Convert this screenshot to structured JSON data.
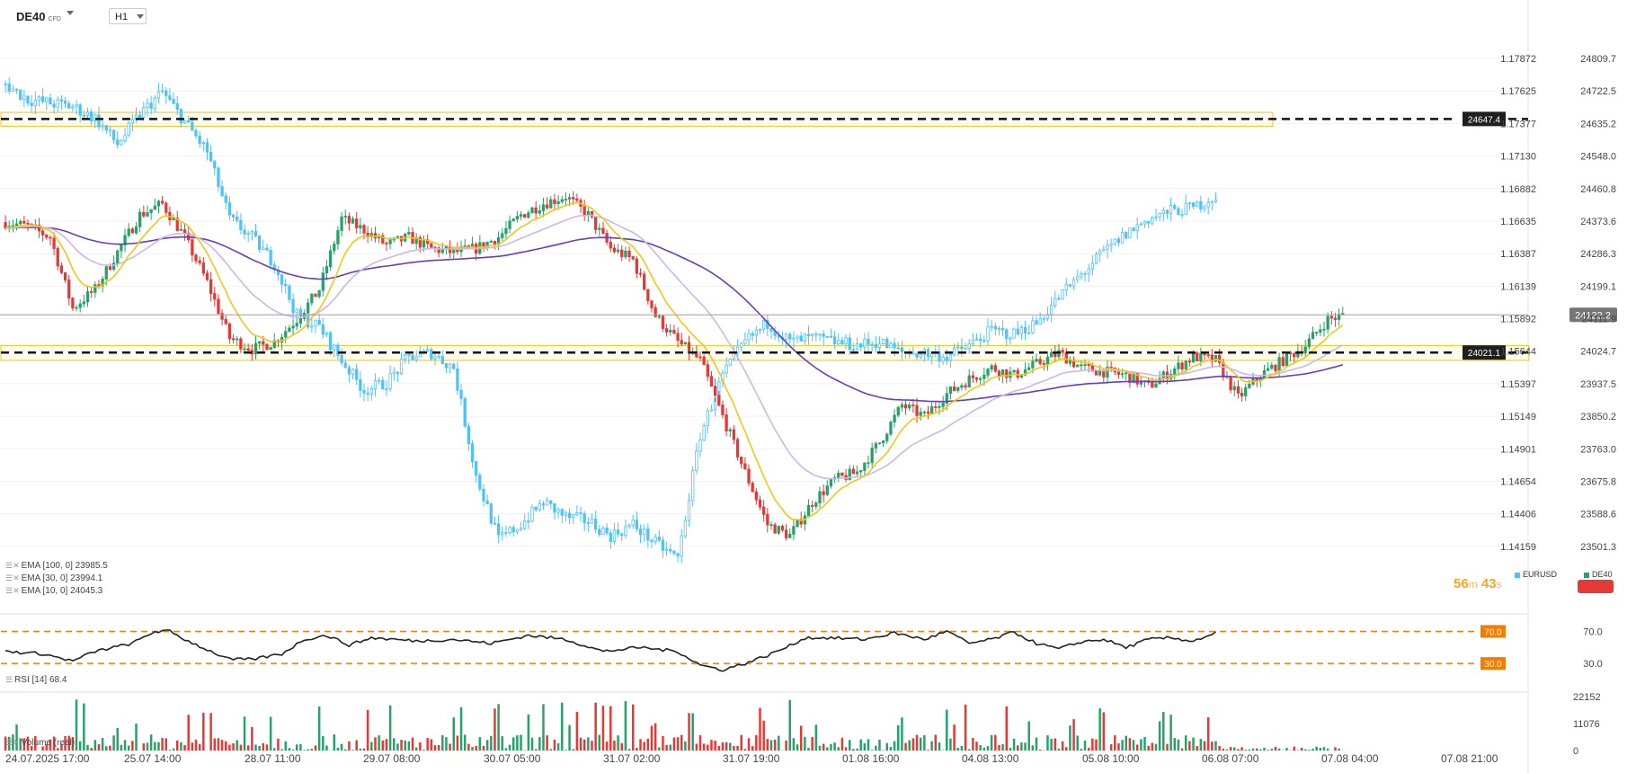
{
  "header": {
    "symbol": "DE40",
    "symbol_sub": "CFD",
    "timeframe": "H1"
  },
  "indicators": [
    {
      "label": "EMA [100, 0]",
      "value": "23985.5"
    },
    {
      "label": "EMA [30, 0]",
      "value": "23994.1"
    },
    {
      "label": "EMA [10, 0]",
      "value": "24045.3"
    }
  ],
  "rsi_label": {
    "label": "RSI [14]",
    "value": "68.4"
  },
  "volume_label": {
    "label": "Volume (real)"
  },
  "timer": {
    "m": "56",
    "m_unit": "m",
    "s": "43",
    "s_unit": "s"
  },
  "legend": [
    {
      "name": "EURUSD",
      "color": "#4fc3f7"
    },
    {
      "name": "DE40",
      "color": "#26a269"
    }
  ],
  "colors": {
    "up": "#26a269",
    "down": "#e53935",
    "overlay": "#4fc3f7",
    "ema10": "#f5c518",
    "ema30": "#c9b8e8",
    "ema100": "#6a3db8",
    "zone": "#f0c419",
    "rsi_level": "#f57c00",
    "label_bg": "#1f1f1f"
  },
  "chart_data": {
    "type": "candlestick",
    "xlabels": [
      "24.07.2025 17:00",
      "25.07 14:00",
      "28.07 11:00",
      "29.07 08:00",
      "30.07 05:00",
      "31.07 02:00",
      "31.07 19:00",
      "01.08 16:00",
      "04.08 13:00",
      "05.08 10:00",
      "06.08 07:00",
      "07.08 04:00",
      "07.08 21:00"
    ],
    "price_axis_left": [
      "1.17872",
      "1.17625",
      "1.17377",
      "1.17130",
      "1.16882",
      "1.16635",
      "1.16387",
      "1.16139",
      "1.15892",
      "1.15644",
      "1.15397",
      "1.15149",
      "1.14901",
      "1.14654",
      "1.14406",
      "1.14159"
    ],
    "price_axis_right": [
      "24809.7",
      "24722.5",
      "24635.2",
      "24548.0",
      "24460.8",
      "24373.6",
      "24286.3",
      "24199.1",
      "24111.9",
      "24024.7",
      "23937.5",
      "23850.2",
      "23763.0",
      "23675.8",
      "23588.6",
      "23501.3"
    ],
    "ylim": [
      23460,
      24870
    ],
    "levels": [
      {
        "label": "24647.4",
        "value": 24647.4
      },
      {
        "label": "24021.1",
        "value": 24021.1
      }
    ],
    "current_price": {
      "label": "24122.2",
      "value": 24122.2
    },
    "de40_anchors": [
      [
        0,
        24370
      ],
      [
        6,
        24360
      ],
      [
        12,
        24330
      ],
      [
        18,
        24140
      ],
      [
        24,
        24190
      ],
      [
        30,
        24290
      ],
      [
        36,
        24390
      ],
      [
        42,
        24420
      ],
      [
        48,
        24330
      ],
      [
        54,
        24210
      ],
      [
        60,
        24060
      ],
      [
        66,
        24030
      ],
      [
        72,
        24050
      ],
      [
        78,
        24110
      ],
      [
        84,
        24190
      ],
      [
        90,
        24380
      ],
      [
        96,
        24350
      ],
      [
        102,
        24310
      ],
      [
        108,
        24330
      ],
      [
        114,
        24300
      ],
      [
        120,
        24290
      ],
      [
        126,
        24300
      ],
      [
        132,
        24330
      ],
      [
        138,
        24390
      ],
      [
        144,
        24420
      ],
      [
        150,
        24440
      ],
      [
        156,
        24390
      ],
      [
        162,
        24300
      ],
      [
        168,
        24270
      ],
      [
        174,
        24120
      ],
      [
        180,
        24050
      ],
      [
        186,
        24000
      ],
      [
        192,
        23850
      ],
      [
        198,
        23700
      ],
      [
        204,
        23560
      ],
      [
        210,
        23530
      ],
      [
        216,
        23620
      ],
      [
        222,
        23680
      ],
      [
        228,
        23700
      ],
      [
        234,
        23780
      ],
      [
        240,
        23880
      ],
      [
        246,
        23850
      ],
      [
        252,
        23910
      ],
      [
        258,
        23950
      ],
      [
        264,
        23980
      ],
      [
        270,
        23960
      ],
      [
        276,
        23990
      ],
      [
        282,
        24020
      ],
      [
        288,
        23980
      ],
      [
        294,
        23970
      ],
      [
        300,
        23960
      ],
      [
        306,
        23930
      ],
      [
        312,
        23970
      ],
      [
        318,
        24010
      ],
      [
        324,
        24000
      ],
      [
        330,
        23900
      ],
      [
        336,
        23960
      ],
      [
        342,
        24000
      ],
      [
        348,
        24040
      ],
      [
        354,
        24110
      ],
      [
        358,
        24120
      ]
    ],
    "eurusd_anchors": [
      [
        0,
        24740
      ],
      [
        6,
        24700
      ],
      [
        12,
        24690
      ],
      [
        18,
        24680
      ],
      [
        24,
        24650
      ],
      [
        30,
        24580
      ],
      [
        36,
        24660
      ],
      [
        42,
        24720
      ],
      [
        48,
        24640
      ],
      [
        54,
        24560
      ],
      [
        60,
        24380
      ],
      [
        66,
        24330
      ],
      [
        72,
        24260
      ],
      [
        78,
        24120
      ],
      [
        84,
        24090
      ],
      [
        90,
        24000
      ],
      [
        96,
        23920
      ],
      [
        102,
        23940
      ],
      [
        108,
        24010
      ],
      [
        114,
        24020
      ],
      [
        120,
        23980
      ],
      [
        126,
        23690
      ],
      [
        132,
        23520
      ],
      [
        138,
        23560
      ],
      [
        144,
        23620
      ],
      [
        150,
        23580
      ],
      [
        156,
        23570
      ],
      [
        162,
        23530
      ],
      [
        168,
        23560
      ],
      [
        174,
        23510
      ],
      [
        180,
        23470
      ],
      [
        186,
        23800
      ],
      [
        192,
        23960
      ],
      [
        198,
        24050
      ],
      [
        204,
        24100
      ],
      [
        210,
        24050
      ],
      [
        216,
        24060
      ],
      [
        222,
        24050
      ],
      [
        228,
        24040
      ],
      [
        234,
        24050
      ],
      [
        240,
        24020
      ],
      [
        246,
        24020
      ],
      [
        252,
        24010
      ],
      [
        258,
        24040
      ],
      [
        264,
        24080
      ],
      [
        270,
        24070
      ],
      [
        276,
        24100
      ],
      [
        282,
        24170
      ],
      [
        288,
        24230
      ],
      [
        294,
        24290
      ],
      [
        300,
        24340
      ],
      [
        306,
        24380
      ],
      [
        312,
        24400
      ],
      [
        318,
        24410
      ],
      [
        324,
        24440
      ]
    ],
    "rsi": {
      "levels": [
        70.0,
        30.0
      ],
      "level_labels": [
        "70.0",
        "30.0"
      ],
      "axis_labels": [
        "70.0",
        "30.0"
      ],
      "ylim": [
        20,
        75
      ],
      "anchors": [
        [
          0,
          45
        ],
        [
          10,
          42
        ],
        [
          18,
          33
        ],
        [
          24,
          45
        ],
        [
          34,
          55
        ],
        [
          40,
          70
        ],
        [
          44,
          70
        ],
        [
          48,
          60
        ],
        [
          55,
          45
        ],
        [
          60,
          35
        ],
        [
          66,
          35
        ],
        [
          74,
          42
        ],
        [
          80,
          60
        ],
        [
          86,
          65
        ],
        [
          92,
          53
        ],
        [
          98,
          62
        ],
        [
          110,
          58
        ],
        [
          120,
          60
        ],
        [
          130,
          55
        ],
        [
          140,
          65
        ],
        [
          150,
          60
        ],
        [
          160,
          45
        ],
        [
          170,
          50
        ],
        [
          180,
          45
        ],
        [
          186,
          28
        ],
        [
          192,
          22
        ],
        [
          198,
          30
        ],
        [
          204,
          40
        ],
        [
          210,
          52
        ],
        [
          214,
          62
        ],
        [
          220,
          62
        ],
        [
          230,
          60
        ],
        [
          238,
          68
        ],
        [
          246,
          60
        ],
        [
          252,
          70
        ],
        [
          258,
          55
        ],
        [
          264,
          60
        ],
        [
          270,
          69
        ],
        [
          276,
          55
        ],
        [
          282,
          48
        ],
        [
          288,
          57
        ],
        [
          294,
          60
        ],
        [
          300,
          50
        ],
        [
          306,
          60
        ],
        [
          312,
          62
        ],
        [
          318,
          58
        ],
        [
          324,
          68
        ]
      ]
    },
    "volume": {
      "axis_labels": [
        "22152",
        "11076",
        "0"
      ],
      "ymax": 22152
    }
  }
}
